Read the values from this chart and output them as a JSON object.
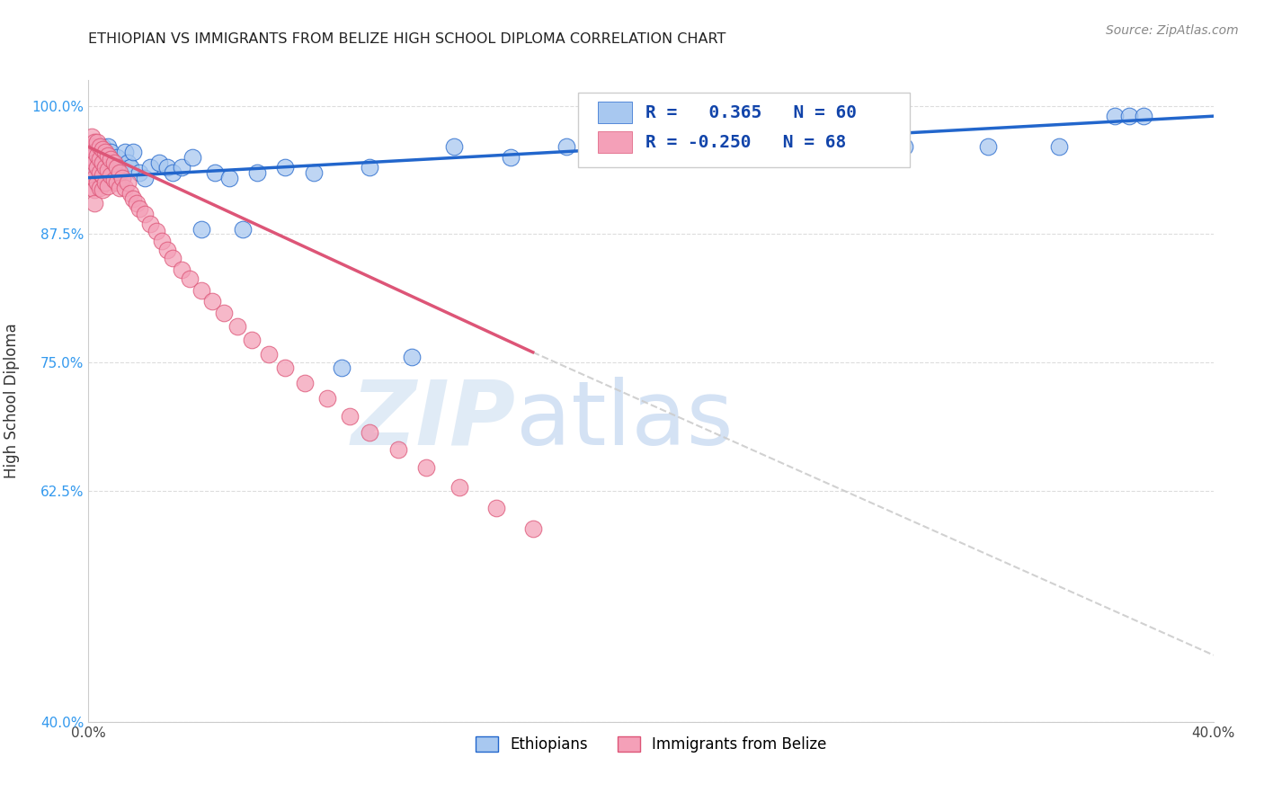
{
  "title": "ETHIOPIAN VS IMMIGRANTS FROM BELIZE HIGH SCHOOL DIPLOMA CORRELATION CHART",
  "source": "Source: ZipAtlas.com",
  "ylabel": "High School Diploma",
  "xlim": [
    0.0,
    0.4
  ],
  "ylim": [
    0.4,
    1.025
  ],
  "xticks": [
    0.0,
    0.05,
    0.1,
    0.15,
    0.2,
    0.25,
    0.3,
    0.35,
    0.4
  ],
  "xticklabels": [
    "0.0%",
    "",
    "",
    "",
    "",
    "",
    "",
    "",
    "40.0%"
  ],
  "yticks": [
    0.4,
    0.625,
    0.75,
    0.875,
    1.0
  ],
  "yticklabels": [
    "40.0%",
    "62.5%",
    "75.0%",
    "87.5%",
    "100.0%"
  ],
  "r_ethiopian": 0.365,
  "n_ethiopian": 60,
  "r_belize": -0.25,
  "n_belize": 68,
  "blue_color": "#A8C8F0",
  "pink_color": "#F4A0B8",
  "line_blue": "#2266CC",
  "line_pink": "#DD5577",
  "line_gray": "#CCCCCC",
  "watermark_zip": "ZIP",
  "watermark_atlas": "atlas",
  "legend_label_ethiopian": "Ethiopians",
  "legend_label_belize": "Immigrants from Belize",
  "eth_x": [
    0.001,
    0.002,
    0.002,
    0.003,
    0.003,
    0.003,
    0.004,
    0.004,
    0.005,
    0.005,
    0.005,
    0.006,
    0.006,
    0.006,
    0.007,
    0.007,
    0.007,
    0.008,
    0.008,
    0.009,
    0.009,
    0.01,
    0.01,
    0.011,
    0.012,
    0.013,
    0.014,
    0.015,
    0.016,
    0.018,
    0.02,
    0.022,
    0.025,
    0.028,
    0.03,
    0.033,
    0.037,
    0.04,
    0.045,
    0.05,
    0.055,
    0.06,
    0.07,
    0.08,
    0.09,
    0.1,
    0.115,
    0.13,
    0.15,
    0.17,
    0.19,
    0.21,
    0.24,
    0.265,
    0.29,
    0.32,
    0.345,
    0.365,
    0.37,
    0.375
  ],
  "eth_y": [
    0.945,
    0.935,
    0.96,
    0.94,
    0.925,
    0.955,
    0.95,
    0.935,
    0.945,
    0.93,
    0.96,
    0.94,
    0.955,
    0.93,
    0.945,
    0.935,
    0.96,
    0.94,
    0.955,
    0.945,
    0.93,
    0.95,
    0.935,
    0.94,
    0.93,
    0.955,
    0.945,
    0.94,
    0.955,
    0.935,
    0.93,
    0.94,
    0.945,
    0.94,
    0.935,
    0.94,
    0.95,
    0.88,
    0.935,
    0.93,
    0.88,
    0.935,
    0.94,
    0.935,
    0.745,
    0.94,
    0.755,
    0.96,
    0.95,
    0.96,
    0.96,
    0.96,
    0.96,
    0.96,
    0.96,
    0.96,
    0.96,
    0.99,
    0.99,
    0.99
  ],
  "bel_x": [
    0.001,
    0.001,
    0.001,
    0.001,
    0.001,
    0.002,
    0.002,
    0.002,
    0.002,
    0.002,
    0.002,
    0.003,
    0.003,
    0.003,
    0.003,
    0.004,
    0.004,
    0.004,
    0.004,
    0.005,
    0.005,
    0.005,
    0.005,
    0.006,
    0.006,
    0.006,
    0.007,
    0.007,
    0.007,
    0.008,
    0.008,
    0.009,
    0.009,
    0.01,
    0.01,
    0.011,
    0.011,
    0.012,
    0.013,
    0.014,
    0.015,
    0.016,
    0.017,
    0.018,
    0.02,
    0.022,
    0.024,
    0.026,
    0.028,
    0.03,
    0.033,
    0.036,
    0.04,
    0.044,
    0.048,
    0.053,
    0.058,
    0.064,
    0.07,
    0.077,
    0.085,
    0.093,
    0.1,
    0.11,
    0.12,
    0.132,
    0.145,
    0.158
  ],
  "bel_y": [
    0.97,
    0.96,
    0.95,
    0.935,
    0.92,
    0.965,
    0.955,
    0.945,
    0.93,
    0.918,
    0.905,
    0.965,
    0.952,
    0.94,
    0.925,
    0.96,
    0.948,
    0.935,
    0.92,
    0.958,
    0.945,
    0.932,
    0.918,
    0.955,
    0.94,
    0.925,
    0.952,
    0.938,
    0.922,
    0.948,
    0.932,
    0.945,
    0.928,
    0.94,
    0.925,
    0.935,
    0.92,
    0.93,
    0.92,
    0.925,
    0.915,
    0.91,
    0.905,
    0.9,
    0.895,
    0.885,
    0.878,
    0.868,
    0.86,
    0.852,
    0.84,
    0.832,
    0.82,
    0.81,
    0.798,
    0.785,
    0.772,
    0.758,
    0.745,
    0.73,
    0.715,
    0.698,
    0.682,
    0.665,
    0.648,
    0.628,
    0.608,
    0.588
  ],
  "eth_line_x0": 0.0,
  "eth_line_y0": 0.93,
  "eth_line_x1": 0.4,
  "eth_line_y1": 0.99,
  "bel_line_x0": 0.0,
  "bel_line_y0": 0.96,
  "bel_line_x1": 0.158,
  "bel_line_y1": 0.76,
  "gray_line_x0": 0.158,
  "gray_line_y0": 0.76,
  "gray_line_x1": 0.4,
  "gray_line_y1": 0.465
}
